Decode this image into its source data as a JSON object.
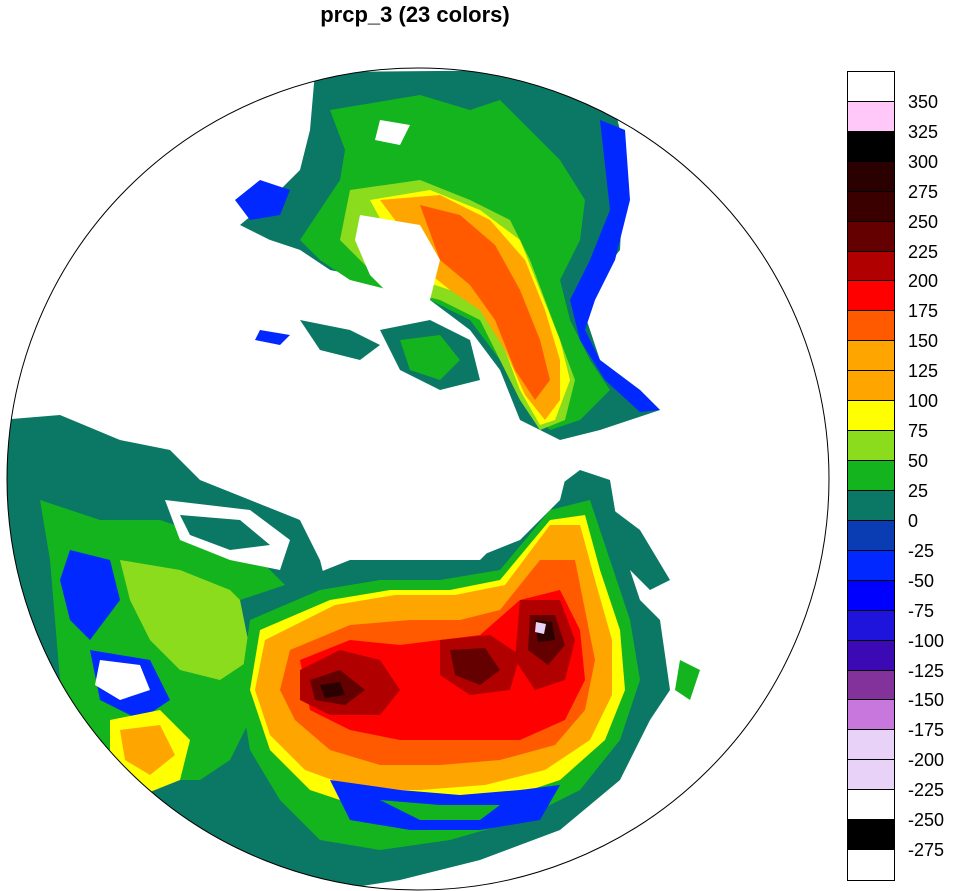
{
  "title": "prcp_3 (23 colors)",
  "colorbar": {
    "swatches": [
      {
        "color": "#ffffff"
      },
      {
        "color": "#ffc8f8"
      },
      {
        "color": "#000000"
      },
      {
        "color": "#2a0000"
      },
      {
        "color": "#3a0000"
      },
      {
        "color": "#640000"
      },
      {
        "color": "#b00000"
      },
      {
        "color": "#ff0000"
      },
      {
        "color": "#ff5a00"
      },
      {
        "color": "#ffa500"
      },
      {
        "color": "#ffa500"
      },
      {
        "color": "#ffff00"
      },
      {
        "color": "#8cdc1e"
      },
      {
        "color": "#14b41e"
      },
      {
        "color": "#0a7864"
      },
      {
        "color": "#0a3cb4"
      },
      {
        "color": "#0028ff"
      },
      {
        "color": "#0000ff"
      },
      {
        "color": "#1e14dc"
      },
      {
        "color": "#3c0ab4"
      },
      {
        "color": "#82329a"
      },
      {
        "color": "#c878dc"
      },
      {
        "color": "#e8d2f8"
      },
      {
        "color": "#e8d2f8"
      },
      {
        "color": "#ffffff"
      },
      {
        "color": "#000000"
      },
      {
        "color": "#ffffff"
      }
    ],
    "tick_labels": [
      "350",
      "325",
      "300",
      "275",
      "250",
      "225",
      "200",
      "175",
      "150",
      "125",
      "100",
      "75",
      "50",
      "25",
      "0",
      "-25",
      "-50",
      "-75",
      "-100",
      "-125",
      "-150",
      "-175",
      "-200",
      "-225",
      "-250",
      "-275"
    ]
  },
  "map": {
    "projection": "polar stereographic (north)",
    "land_colors": {
      "green_dark": "#0a7864",
      "green": "#14b41e",
      "lime": "#8cdc1e",
      "yellow": "#ffff00",
      "orange": "#ffa500",
      "red_orange": "#ff5a00",
      "red": "#ff0000",
      "dark_red": "#b00000",
      "maroon": "#640000",
      "blue": "#0028ff",
      "dark_blue": "#0a3cb4"
    }
  }
}
